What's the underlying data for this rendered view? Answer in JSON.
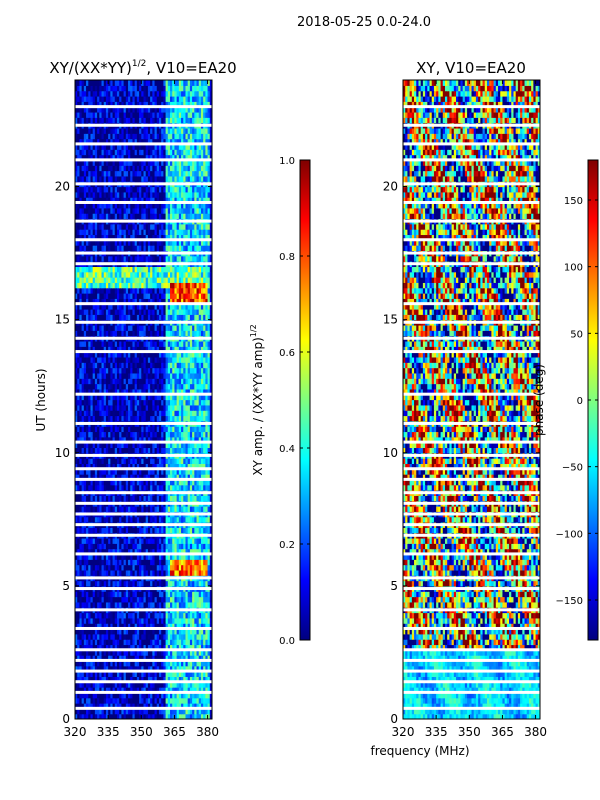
{
  "figure": {
    "suptitle": "2018-05-25 0.0-24.0",
    "xlabel_shared": "frequency (MHz)",
    "ylabel_shared": "UT (hours)"
  },
  "colors": {
    "flag_white": "#ffffff",
    "jet": [
      "#00007f",
      "#0000ff",
      "#007fff",
      "#00ffff",
      "#7fff7f",
      "#ffff00",
      "#ff7f00",
      "#ff0000",
      "#7f0000"
    ]
  },
  "chart_data": [
    {
      "type": "heatmap",
      "title": "XY/(XX*YY)",
      "title_superscript": "1/2",
      "title_suffix": ", V10=EA20",
      "xlabel": "frequency (MHz)",
      "ylabel": "UT (hours)",
      "xlim": [
        320,
        382
      ],
      "ylim": [
        0,
        24
      ],
      "xticks": [
        320,
        335,
        350,
        365,
        380
      ],
      "yticks": [
        0,
        5,
        10,
        15,
        20
      ],
      "colorbar": {
        "label": "XY amp. / (XX*YY amp)",
        "label_superscript": "1/2",
        "range": [
          0.0,
          1.0
        ],
        "ticks": [
          "0.0",
          "0.2",
          "0.4",
          "0.6",
          "0.8",
          "1.0"
        ],
        "tick_values": [
          0.0,
          0.2,
          0.4,
          0.6,
          0.8,
          1.0
        ],
        "colormap": "jet"
      },
      "regions": [
        {
          "freq_range": [
            320,
            361
          ],
          "ut_range": [
            0,
            24
          ],
          "value": 0.06,
          "note": "mostly low amplitude"
        },
        {
          "freq_range": [
            361,
            381
          ],
          "ut_range": [
            0,
            24
          ],
          "value": 0.35,
          "note": "higher amplitude channels"
        },
        {
          "freq_range": [
            320,
            381
          ],
          "ut_range": [
            16.2,
            17.0
          ],
          "value": 0.45
        },
        {
          "freq_range": [
            363,
            380
          ],
          "ut_range": [
            15.7,
            16.4
          ],
          "value": 0.8
        },
        {
          "freq_range": [
            363,
            380
          ],
          "ut_range": [
            5.4,
            5.9
          ],
          "value": 0.75
        }
      ],
      "flagged_ut_hours": [
        0.4,
        1.0,
        1.4,
        1.8,
        2.2,
        2.6,
        3.4,
        4.1,
        4.9,
        5.3,
        6.2,
        6.9,
        7.3,
        7.7,
        8.1,
        8.5,
        9.0,
        9.4,
        9.9,
        10.4,
        11.1,
        12.2,
        13.8,
        14.3,
        14.9,
        15.6,
        17.1,
        17.5,
        18.0,
        18.7,
        19.4,
        20.1,
        21.0,
        21.6,
        22.3,
        23.0
      ]
    },
    {
      "type": "heatmap",
      "title": "XY, V10=EA20",
      "xlabel": "frequency (MHz)",
      "ylabel": "",
      "xlim": [
        320,
        382
      ],
      "ylim": [
        0,
        24
      ],
      "xticks": [
        320,
        335,
        350,
        365,
        380
      ],
      "yticks": [
        0,
        5,
        10,
        15,
        20
      ],
      "colorbar": {
        "label": "phase (deg)",
        "range": [
          -180,
          180
        ],
        "ticks": [
          "150",
          "100",
          "50",
          "0",
          "−50",
          "−100",
          "−150"
        ],
        "tick_values": [
          150,
          100,
          50,
          0,
          -50,
          -100,
          -150
        ],
        "colormap": "jet"
      },
      "regions": [
        {
          "freq_range": [
            320,
            382
          ],
          "ut_range": [
            0,
            2.6
          ],
          "value": -60,
          "note": "smooth phase, mostly cyan/blue"
        },
        {
          "freq_range": [
            320,
            382
          ],
          "ut_range": [
            2.6,
            24
          ],
          "value": 0,
          "note": "highly variable phase, full color range"
        }
      ],
      "flagged_ut_hours": [
        0.4,
        1.0,
        1.4,
        1.8,
        2.2,
        2.6,
        3.4,
        4.1,
        4.9,
        5.3,
        6.2,
        6.9,
        7.3,
        7.7,
        8.1,
        8.5,
        9.0,
        9.4,
        9.9,
        10.4,
        11.1,
        12.2,
        13.8,
        14.3,
        14.9,
        15.6,
        17.1,
        17.5,
        18.0,
        18.7,
        19.4,
        20.1,
        21.0,
        21.6,
        22.3,
        23.0
      ]
    }
  ]
}
